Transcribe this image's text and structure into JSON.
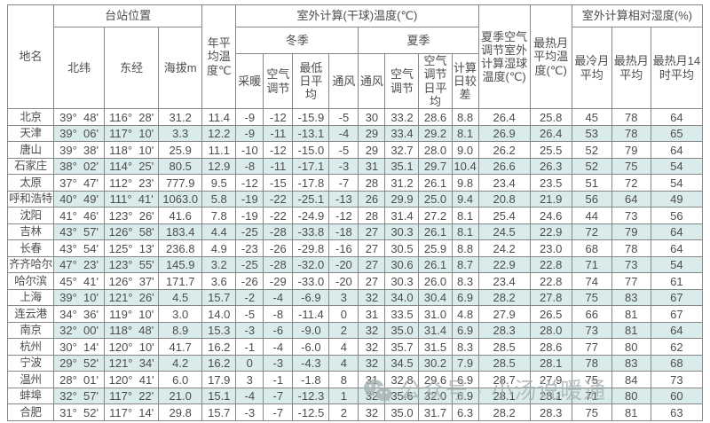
{
  "colors": {
    "border": "#878787",
    "text": "#4d4d4d",
    "row_stripe": "#d9eceb",
    "watermark": "#a6b3b3",
    "background": "#ffffff"
  },
  "table": {
    "headers": {
      "place": "地名",
      "station_location": "台站位置",
      "north_latitude": "北纬",
      "east_longitude": "东经",
      "altitude": "海拔m",
      "annual_avg_temp": "年平均温度℃",
      "outdoor_dry_bulb": "室外计算(干球)温度(℃)",
      "winter": "冬季",
      "summer": "夏季",
      "winter_heating": "采暖",
      "winter_ac": "空气调节",
      "winter_min_daily": "最低日平均",
      "winter_vent": "通风",
      "summer_vent": "通风",
      "summer_ac": "空气调节",
      "summer_ac_daily": "空气调节日平均",
      "summer_daily_range": "计算日较差",
      "summer_wet_bulb": "夏季空气调节室外计算湿球温度(℃)",
      "hottest_month_avg_temp": "最热月平均温度(℃)",
      "outdoor_rh": "室外计算相对湿度(%)",
      "rh_coldest_month": "最冷月平均",
      "rh_hottest_month": "最热月平均",
      "rh_hottest_month_14h": "最热月14时平均"
    },
    "column_keys": [
      "place",
      "north_latitude",
      "east_longitude",
      "altitude",
      "annual_avg_temp",
      "winter_heating",
      "winter_ac",
      "winter_min_daily",
      "winter_vent",
      "summer_vent",
      "summer_ac",
      "summer_ac_daily",
      "summer_daily_range",
      "summer_wet_bulb",
      "hottest_month_avg_temp",
      "rh_coldest_month",
      "rh_hottest_month",
      "rh_hottest_month_14h"
    ],
    "rows": [
      [
        "北京",
        "39°  48'",
        "116°  28'",
        "31.2",
        "11.4",
        "-9",
        "-12",
        "-15.9",
        "-5",
        "30",
        "33.2",
        "28.6",
        "8.8",
        "26.4",
        "25.8",
        "45",
        "78",
        "64"
      ],
      [
        "天津",
        "39°  06'",
        "117°  10'",
        "3.3",
        "12.2",
        "-9",
        "-11",
        "-13.1",
        "-4",
        "29",
        "33.4",
        "29.2",
        "8.1",
        "26.9",
        "26.4",
        "53",
        "78",
        "65"
      ],
      [
        "唐山",
        "39°  38'",
        "118°  10'",
        "25.9",
        "11.1",
        "-10",
        "-12",
        "-15.0",
        "-5",
        "29",
        "32.7",
        "28.0",
        "9.0",
        "26.2",
        "25.5",
        "52",
        "79",
        "64"
      ],
      [
        "石家庄",
        "38°  02'",
        "114°  25'",
        "80.5",
        "12.9",
        "-8",
        "-11",
        "-17.1",
        "-3",
        "31",
        "35.1",
        "29.7",
        "10.4",
        "26.6",
        "26.3",
        "52",
        "75",
        "54"
      ],
      [
        "太原",
        "37°  47'",
        "112°  23'",
        "777.9",
        "9.5",
        "-12",
        "-15",
        "-17.8",
        "-7",
        "28",
        "31.2",
        "26.1",
        "9.8",
        "23.4",
        "23.5",
        "51",
        "72",
        "54"
      ],
      [
        "呼和浩特",
        "40°  49'",
        "111°  41'",
        "1063.0",
        "5.8",
        "-19",
        "-22",
        "-25.1",
        "-13",
        "26",
        "29.9",
        "25.0",
        "9.4",
        "20.8",
        "21.9",
        "56",
        "64",
        "49"
      ],
      [
        "沈阳",
        "41°  46'",
        "123°  26'",
        "41.6",
        "7.8",
        "-19",
        "-22",
        "-24.9",
        "-12",
        "28",
        "31.4",
        "27.2",
        "8.1",
        "25.4",
        "24.6",
        "44",
        "73",
        "56"
      ],
      [
        "吉林",
        "43°  57'",
        "126°  58'",
        "183.4",
        "4.4",
        "-25",
        "-28",
        "-33.8",
        "-18",
        "27",
        "30.3",
        "26.1",
        "8.1",
        "24.5",
        "22.9",
        "72",
        "79",
        "64"
      ],
      [
        "长春",
        "43°  54'",
        "125°  13'",
        "236.8",
        "4.9",
        "-23",
        "-26",
        "-29.8",
        "-16",
        "27",
        "30.5",
        "25.9",
        "8.8",
        "24.2",
        "23.0",
        "68",
        "78",
        "64"
      ],
      [
        "齐齐哈尔",
        "47°  23'",
        "123°  55'",
        "145.9",
        "3.2",
        "-25",
        "-28",
        "-32.0",
        "-20",
        "27",
        "30.6",
        "26.1",
        "8.7",
        "22.9",
        "22.8",
        "71",
        "73",
        "54"
      ],
      [
        "哈尔滨",
        "45°  41'",
        "126°  37'",
        "171.7",
        "3.6",
        "-26",
        "-29",
        "-33.0",
        "-20",
        "27",
        "30.3",
        "26.0",
        "8.3",
        "23.4",
        "22.8",
        "74",
        "77",
        "61"
      ],
      [
        "上海",
        "39°  10'",
        "121°  26'",
        "4.5",
        "15.7",
        "-2",
        "-4",
        "-6.9",
        "3",
        "32",
        "34.0",
        "30.4",
        "6.9",
        "28.2",
        "27.8",
        "75",
        "83",
        "67"
      ],
      [
        "连云港",
        "34°  36'",
        "119°  10'",
        "3.0",
        "14.0",
        "-5",
        "-8",
        "-11.4",
        "0",
        "31",
        "33.5",
        "31.0",
        "4.8",
        "27.9",
        "26.5",
        "66",
        "81",
        "67"
      ],
      [
        "南京",
        "32°  00'",
        "118°  48'",
        "8.9",
        "15.3",
        "-3",
        "-6",
        "-9.0",
        "2",
        "32",
        "35.0",
        "31.4",
        "6.9",
        "28.3",
        "28.0",
        "73",
        "81",
        "64"
      ],
      [
        "杭州",
        "30°  14'",
        "120°  10'",
        "41.7",
        "16.2",
        "-1",
        "-4",
        "-6.0",
        "4",
        "32",
        "35.7",
        "31.5",
        "8.3",
        "28.5",
        "28.6",
        "77",
        "80",
        "62"
      ],
      [
        "宁波",
        "29°  52'",
        "121°  34'",
        "4.2",
        "16.2",
        "0",
        "-3",
        "-4.3",
        "4",
        "32",
        "34.5",
        "30.2",
        "7.9",
        "28.5",
        "28.1",
        "78",
        "83",
        "68"
      ],
      [
        "温州",
        "28°  01'",
        "120°  41'",
        "6.0",
        "17.9",
        "3",
        "-1",
        "-1.8",
        "8",
        "31",
        "32.8",
        "29.6",
        "6.9",
        "28.7",
        "27.9",
        "75",
        "84",
        "73"
      ],
      [
        "蚌埠",
        "32°  57'",
        "117°  22'",
        "21.0",
        "15.1",
        "-4",
        "-7",
        "-12.3",
        "1",
        "32",
        "35.6",
        "32.0",
        "6.9",
        "28.1",
        "28.1",
        "71",
        "80",
        "60"
      ],
      [
        "合肥",
        "31°  52'",
        "117°  14'",
        "29.8",
        "15.7",
        "-3",
        "-7",
        "-12.5",
        "2",
        "32",
        "35.0",
        "31.7",
        "6.3",
        "28.2",
        "28.3",
        "75",
        "81",
        "63"
      ]
    ]
  },
  "watermark": {
    "text": "公众号 · 小汤说暖通"
  }
}
